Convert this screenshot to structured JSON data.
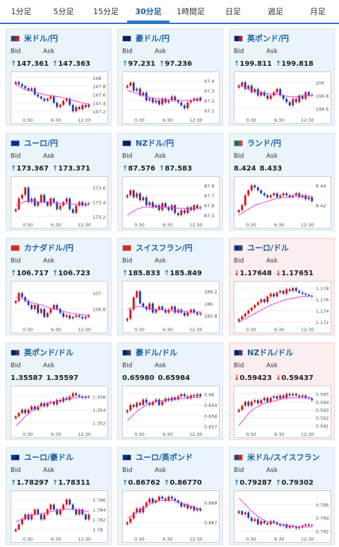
{
  "tabs": [
    "1分足",
    "5分足",
    "15分足",
    "30分足",
    "1時間足",
    "日足",
    "週足",
    "月足"
  ],
  "active_tab": 3,
  "labels": {
    "bid": "Bid",
    "ask": "Ask"
  },
  "x_ticks": [
    "0:30",
    "6:30",
    "12:30"
  ],
  "colors": {
    "up": "#d11",
    "down": "#1a3fb0",
    "ma": "#e040e0",
    "link": "#1a5fa8"
  },
  "cards": [
    {
      "pair": "米ドル/円",
      "flag": [
        "#3c3b6e",
        "#b22234"
      ],
      "dir": "up",
      "bid": "147.361",
      "ask": "147.363",
      "bg": "blue",
      "ticks": [
        "148",
        "147.8",
        "147.6",
        "147.4",
        "147.2"
      ],
      "range": [
        147.1,
        148.05
      ],
      "closes": [
        147.9,
        147.85,
        147.8,
        147.75,
        147.7,
        147.75,
        147.6,
        147.55,
        147.5,
        147.45,
        147.5,
        147.55,
        147.4,
        147.3,
        147.35,
        147.45,
        147.5,
        147.35,
        147.2,
        147.3,
        147.25,
        147.35,
        147.3,
        147.36
      ],
      "ma": [
        147.85,
        147.8,
        147.75,
        147.72,
        147.7,
        147.68,
        147.66,
        147.64,
        147.62,
        147.6,
        147.58,
        147.57,
        147.56,
        147.55,
        147.54,
        147.52,
        147.5,
        147.48,
        147.46,
        147.44,
        147.42,
        147.4,
        147.38,
        147.37
      ]
    },
    {
      "pair": "豪ドル/円",
      "flag": [
        "#012169",
        "#012169"
      ],
      "dir": "up",
      "bid": "97.231",
      "ask": "97.236",
      "bg": "blue",
      "ticks": [
        "97.4",
        "97.3",
        "97.2",
        "97.1"
      ],
      "range": [
        97.05,
        97.45
      ],
      "closes": [
        97.35,
        97.38,
        97.3,
        97.32,
        97.25,
        97.28,
        97.2,
        97.22,
        97.18,
        97.2,
        97.16,
        97.22,
        97.18,
        97.2,
        97.24,
        97.2,
        97.18,
        97.15,
        97.12,
        97.18,
        97.2,
        97.22,
        97.2,
        97.23
      ],
      "ma": [
        97.3,
        97.29,
        97.28,
        97.27,
        97.26,
        97.25,
        97.24,
        97.23,
        97.23,
        97.22,
        97.22,
        97.21,
        97.21,
        97.21,
        97.21,
        97.21,
        97.2,
        97.2,
        97.2,
        97.2,
        97.2,
        97.2,
        97.2,
        97.2
      ]
    },
    {
      "pair": "英ポンド/円",
      "flag": [
        "#012169",
        "#c8102e"
      ],
      "dir": "up",
      "bid": "199.811",
      "ask": "199.818",
      "bg": "blue",
      "ticks": [
        "200",
        "199.8",
        "199.6"
      ],
      "range": [
        199.5,
        200.1
      ],
      "closes": [
        199.95,
        200.0,
        199.9,
        199.95,
        199.85,
        199.9,
        199.8,
        199.85,
        199.8,
        199.75,
        199.8,
        199.85,
        199.9,
        199.8,
        199.75,
        199.7,
        199.65,
        199.75,
        199.7,
        199.8,
        199.75,
        199.85,
        199.8,
        199.81
      ],
      "ma": [
        199.95,
        199.94,
        199.92,
        199.9,
        199.88,
        199.87,
        199.86,
        199.85,
        199.84,
        199.83,
        199.82,
        199.82,
        199.82,
        199.81,
        199.8,
        199.79,
        199.78,
        199.78,
        199.78,
        199.79,
        199.79,
        199.8,
        199.8,
        199.8
      ]
    },
    {
      "pair": "ユーロ/円",
      "flag": [
        "#003399",
        "#003399"
      ],
      "dir": "up",
      "bid": "173.367",
      "ask": "173.371",
      "bg": "blue",
      "ticks": [
        "173.6",
        "173.4",
        "173.2"
      ],
      "range": [
        173.15,
        173.7
      ],
      "closes": [
        173.3,
        173.45,
        173.5,
        173.6,
        173.4,
        173.45,
        173.35,
        173.4,
        173.5,
        173.4,
        173.35,
        173.45,
        173.4,
        173.3,
        173.35,
        173.4,
        173.45,
        173.3,
        173.25,
        173.35,
        173.4,
        173.35,
        173.38,
        173.37
      ],
      "ma": [
        173.35,
        173.37,
        173.39,
        173.41,
        173.41,
        173.41,
        173.4,
        173.4,
        173.4,
        173.4,
        173.4,
        173.4,
        173.39,
        173.38,
        173.38,
        173.38,
        173.38,
        173.37,
        173.37,
        173.37,
        173.37,
        173.37,
        173.37,
        173.37
      ]
    },
    {
      "pair": "NZドル/円",
      "flag": [
        "#012169",
        "#012169"
      ],
      "dir": "up",
      "bid": "87.576",
      "ask": "87.583",
      "bg": "blue",
      "ticks": [
        "87.8",
        "87.7",
        "87.6",
        "87.5"
      ],
      "range": [
        87.45,
        87.85
      ],
      "closes": [
        87.7,
        87.75,
        87.68,
        87.72,
        87.65,
        87.68,
        87.6,
        87.63,
        87.58,
        87.6,
        87.55,
        87.62,
        87.58,
        87.55,
        87.6,
        87.52,
        87.5,
        87.55,
        87.52,
        87.58,
        87.55,
        87.6,
        87.57,
        87.58
      ],
      "ma": [
        87.5,
        87.52,
        87.54,
        87.56,
        87.57,
        87.58,
        87.58,
        87.58,
        87.58,
        87.58,
        87.58,
        87.58,
        87.58,
        87.58,
        87.58,
        87.57,
        87.57,
        87.57,
        87.57,
        87.57,
        87.57,
        87.57,
        87.57,
        87.57
      ]
    },
    {
      "pair": "ランド/円",
      "flag": [
        "#007a4d",
        "#de3831"
      ],
      "dir": "none",
      "bid": "8.424",
      "ask": "8.433",
      "bg": "blue",
      "ticks": [
        "8.44",
        "8.42"
      ],
      "range": [
        8.405,
        8.445
      ],
      "closes": [
        8.415,
        8.42,
        8.43,
        8.435,
        8.44,
        8.438,
        8.435,
        8.432,
        8.43,
        8.428,
        8.43,
        8.432,
        8.428,
        8.43,
        8.432,
        8.43,
        8.428,
        8.43,
        8.432,
        8.428,
        8.43,
        8.426,
        8.428,
        8.424
      ],
      "ma": [
        8.41,
        8.412,
        8.414,
        8.416,
        8.418,
        8.42,
        8.421,
        8.422,
        8.423,
        8.424,
        8.425,
        8.426,
        8.427,
        8.427,
        8.428,
        8.428,
        8.428,
        8.429,
        8.429,
        8.429,
        8.429,
        8.429,
        8.429,
        8.429
      ]
    },
    {
      "pair": "カナダドル/円",
      "flag": [
        "#d52b1e",
        "#d52b1e"
      ],
      "dir": "up",
      "bid": "106.717",
      "ask": "106.723",
      "bg": "blue",
      "ticks": [
        "107",
        "106.8"
      ],
      "range": [
        106.6,
        107.1
      ],
      "closes": [
        106.9,
        107.0,
        106.95,
        106.9,
        106.85,
        106.8,
        106.85,
        106.75,
        106.8,
        106.7,
        106.75,
        106.8,
        106.85,
        106.8,
        106.75,
        106.7,
        106.72,
        106.68,
        106.7,
        106.72,
        106.7,
        106.68,
        106.7,
        106.72
      ],
      "ma": [
        106.95,
        106.94,
        106.93,
        106.92,
        106.9,
        106.88,
        106.87,
        106.86,
        106.85,
        106.84,
        106.82,
        106.81,
        106.8,
        106.79,
        106.78,
        106.77,
        106.76,
        106.75,
        106.74,
        106.74,
        106.73,
        106.73,
        106.72,
        106.72
      ]
    },
    {
      "pair": "スイスフラン/円",
      "flag": [
        "#d52b1e",
        "#d52b1e"
      ],
      "dir": "up",
      "bid": "185.833",
      "ask": "185.849",
      "bg": "blue",
      "ticks": [
        "186.2",
        "186",
        "185.8"
      ],
      "range": [
        185.65,
        186.3
      ],
      "closes": [
        185.75,
        185.9,
        186.1,
        186.2,
        186.0,
        185.95,
        185.9,
        186.0,
        185.85,
        185.9,
        185.95,
        185.9,
        185.85,
        185.9,
        185.95,
        185.85,
        185.9,
        185.85,
        185.8,
        185.85,
        185.9,
        185.85,
        185.82,
        185.84
      ],
      "ma": [
        185.9,
        185.92,
        185.94,
        185.95,
        185.95,
        185.94,
        185.93,
        185.92,
        185.91,
        185.9,
        185.9,
        185.9,
        185.89,
        185.88,
        185.88,
        185.88,
        185.87,
        185.87,
        185.87,
        185.86,
        185.86,
        185.86,
        185.86,
        185.86
      ]
    },
    {
      "pair": "ユーロ/ドル",
      "flag": [
        "#003399",
        "#3c3b6e"
      ],
      "dir": "down",
      "bid": "1.17648",
      "ask": "1.17651",
      "bg": "red",
      "ticks": [
        "1.178",
        "1.176",
        "1.174",
        "1.172"
      ],
      "range": [
        1.1715,
        1.1785
      ],
      "closes": [
        1.1725,
        1.173,
        1.1735,
        1.174,
        1.1745,
        1.175,
        1.1755,
        1.176,
        1.1755,
        1.1765,
        1.177,
        1.1765,
        1.1772,
        1.1775,
        1.177,
        1.1778,
        1.1775,
        1.178,
        1.1775,
        1.1772,
        1.177,
        1.1768,
        1.1766,
        1.1765
      ],
      "ma": [
        1.172,
        1.1723,
        1.1726,
        1.1729,
        1.1732,
        1.1735,
        1.1738,
        1.1741,
        1.1744,
        1.1747,
        1.175,
        1.1752,
        1.1754,
        1.1756,
        1.1758,
        1.176,
        1.1761,
        1.1762,
        1.1763,
        1.1764,
        1.1765,
        1.1765,
        1.1766,
        1.1766
      ]
    },
    {
      "pair": "英ポンド/ドル",
      "flag": [
        "#012169",
        "#3c3b6e"
      ],
      "dir": "none",
      "bid": "1.35587",
      "ask": "1.35597",
      "bg": "blue",
      "ticks": [
        "1.356",
        "1.354",
        "1.352"
      ],
      "range": [
        1.351,
        1.357
      ],
      "closes": [
        1.353,
        1.3535,
        1.354,
        1.3535,
        1.354,
        1.3545,
        1.354,
        1.3545,
        1.355,
        1.3545,
        1.355,
        1.3552,
        1.3548,
        1.3555,
        1.3552,
        1.3558,
        1.3555,
        1.356,
        1.3565,
        1.3562,
        1.356,
        1.3558,
        1.356,
        1.3559
      ],
      "ma": [
        1.3515,
        1.352,
        1.3525,
        1.353,
        1.3534,
        1.3538,
        1.3541,
        1.3544,
        1.3546,
        1.3548,
        1.355,
        1.3551,
        1.3552,
        1.3553,
        1.3554,
        1.3555,
        1.3556,
        1.3557,
        1.3558,
        1.3558,
        1.3559,
        1.3559,
        1.3559,
        1.3559
      ]
    },
    {
      "pair": "豪ドル/ドル",
      "flag": [
        "#012169",
        "#3c3b6e"
      ],
      "dir": "none",
      "bid": "0.65980",
      "ask": "0.65984",
      "bg": "blue",
      "ticks": [
        "0.66",
        "0.659",
        "0.658",
        "0.657"
      ],
      "range": [
        0.6567,
        0.6604
      ],
      "closes": [
        0.6585,
        0.659,
        0.6588,
        0.6592,
        0.659,
        0.6595,
        0.6592,
        0.659,
        0.6593,
        0.6595,
        0.659,
        0.6593,
        0.6596,
        0.6594,
        0.6597,
        0.6595,
        0.6598,
        0.66,
        0.6598,
        0.6596,
        0.6599,
        0.6598,
        0.66,
        0.6598
      ],
      "ma": [
        0.6575,
        0.6578,
        0.6581,
        0.6584,
        0.6586,
        0.6588,
        0.659,
        0.6591,
        0.6592,
        0.6593,
        0.6593,
        0.6594,
        0.6594,
        0.6595,
        0.6595,
        0.6595,
        0.6596,
        0.6596,
        0.6596,
        0.6597,
        0.6597,
        0.6597,
        0.6597,
        0.6597
      ]
    },
    {
      "pair": "NZドル/ドル",
      "flag": [
        "#012169",
        "#3c3b6e"
      ],
      "dir": "down",
      "bid": "0.59423",
      "ask": "0.59437",
      "bg": "red",
      "ticks": [
        "0.595",
        "0.594",
        "0.593",
        "0.592",
        "0.591"
      ],
      "range": [
        0.5905,
        0.5955
      ],
      "closes": [
        0.593,
        0.5935,
        0.594,
        0.5935,
        0.594,
        0.5942,
        0.5938,
        0.5942,
        0.5945,
        0.594,
        0.5945,
        0.5947,
        0.5944,
        0.5948,
        0.5945,
        0.595,
        0.5948,
        0.595,
        0.5948,
        0.5946,
        0.5948,
        0.5945,
        0.5944,
        0.5942
      ],
      "ma": [
        0.591,
        0.5915,
        0.592,
        0.5925,
        0.5929,
        0.5932,
        0.5934,
        0.5936,
        0.5938,
        0.5939,
        0.594,
        0.5941,
        0.5942,
        0.5943,
        0.5944,
        0.5944,
        0.5945,
        0.5945,
        0.5945,
        0.5945,
        0.5945,
        0.5945,
        0.5945,
        0.5945
      ]
    },
    {
      "pair": "ユーロ/豪ドル",
      "flag": [
        "#003399",
        "#012169"
      ],
      "dir": "up",
      "bid": "1.78297",
      "ask": "1.78311",
      "bg": "blue",
      "ticks": [
        "1.786",
        "1.784",
        "1.782",
        "1.78"
      ],
      "range": [
        1.779,
        1.787
      ],
      "closes": [
        1.78,
        1.781,
        1.782,
        1.783,
        1.782,
        1.783,
        1.784,
        1.783,
        1.782,
        1.783,
        1.784,
        1.785,
        1.784,
        1.783,
        1.784,
        1.785,
        1.786,
        1.785,
        1.784,
        1.783,
        1.784,
        1.783,
        1.782,
        1.783
      ],
      "ma": [
        1.7815,
        1.7818,
        1.7821,
        1.7824,
        1.7826,
        1.7828,
        1.783,
        1.7831,
        1.7832,
        1.7833,
        1.7834,
        1.7836,
        1.7837,
        1.7838,
        1.7839,
        1.784,
        1.7841,
        1.7841,
        1.7841,
        1.784,
        1.7839,
        1.7838,
        1.7837,
        1.7836
      ]
    },
    {
      "pair": "ユーロ/英ポンド",
      "flag": [
        "#003399",
        "#012169"
      ],
      "dir": "up",
      "bid": "0.86762",
      "ask": "0.86770",
      "bg": "blue",
      "ticks": [
        "0.868",
        "0.867"
      ],
      "range": [
        0.8664,
        0.8684
      ],
      "closes": [
        0.867,
        0.8672,
        0.8675,
        0.8677,
        0.8675,
        0.8678,
        0.868,
        0.8682,
        0.868,
        0.8681,
        0.8683,
        0.8682,
        0.8681,
        0.8683,
        0.8682,
        0.8681,
        0.868,
        0.8678,
        0.8679,
        0.8677,
        0.8678,
        0.8676,
        0.8677,
        0.8676
      ],
      "ma": [
        0.8672,
        0.8673,
        0.8674,
        0.8675,
        0.8676,
        0.8677,
        0.8678,
        0.8679,
        0.868,
        0.8681,
        0.8681,
        0.8681,
        0.8681,
        0.8681,
        0.8681,
        0.8681,
        0.868,
        0.868,
        0.8679,
        0.8679,
        0.8678,
        0.8678,
        0.8677,
        0.8677
      ]
    },
    {
      "pair": "米ドル/スイスフラン",
      "flag": [
        "#3c3b6e",
        "#d52b1e"
      ],
      "dir": "up",
      "bid": "0.79287",
      "ask": "0.79302",
      "bg": "blue",
      "ticks": [
        "0.796",
        "0.794",
        "0.792"
      ],
      "range": [
        0.7915,
        0.7975
      ],
      "closes": [
        0.795,
        0.7945,
        0.7948,
        0.794,
        0.7935,
        0.7938,
        0.793,
        0.7935,
        0.7932,
        0.793,
        0.7935,
        0.7933,
        0.793,
        0.7928,
        0.793,
        0.7925,
        0.7928,
        0.7926,
        0.7924,
        0.7926,
        0.7928,
        0.793,
        0.7928,
        0.7929
      ],
      "ma": [
        0.797,
        0.7965,
        0.796,
        0.7955,
        0.795,
        0.7946,
        0.7942,
        0.7939,
        0.7936,
        0.7934,
        0.7933,
        0.7932,
        0.7931,
        0.793,
        0.7929,
        0.7928,
        0.7928,
        0.7927,
        0.7927,
        0.7926,
        0.7926,
        0.7926,
        0.7926,
        0.7926
      ]
    }
  ]
}
